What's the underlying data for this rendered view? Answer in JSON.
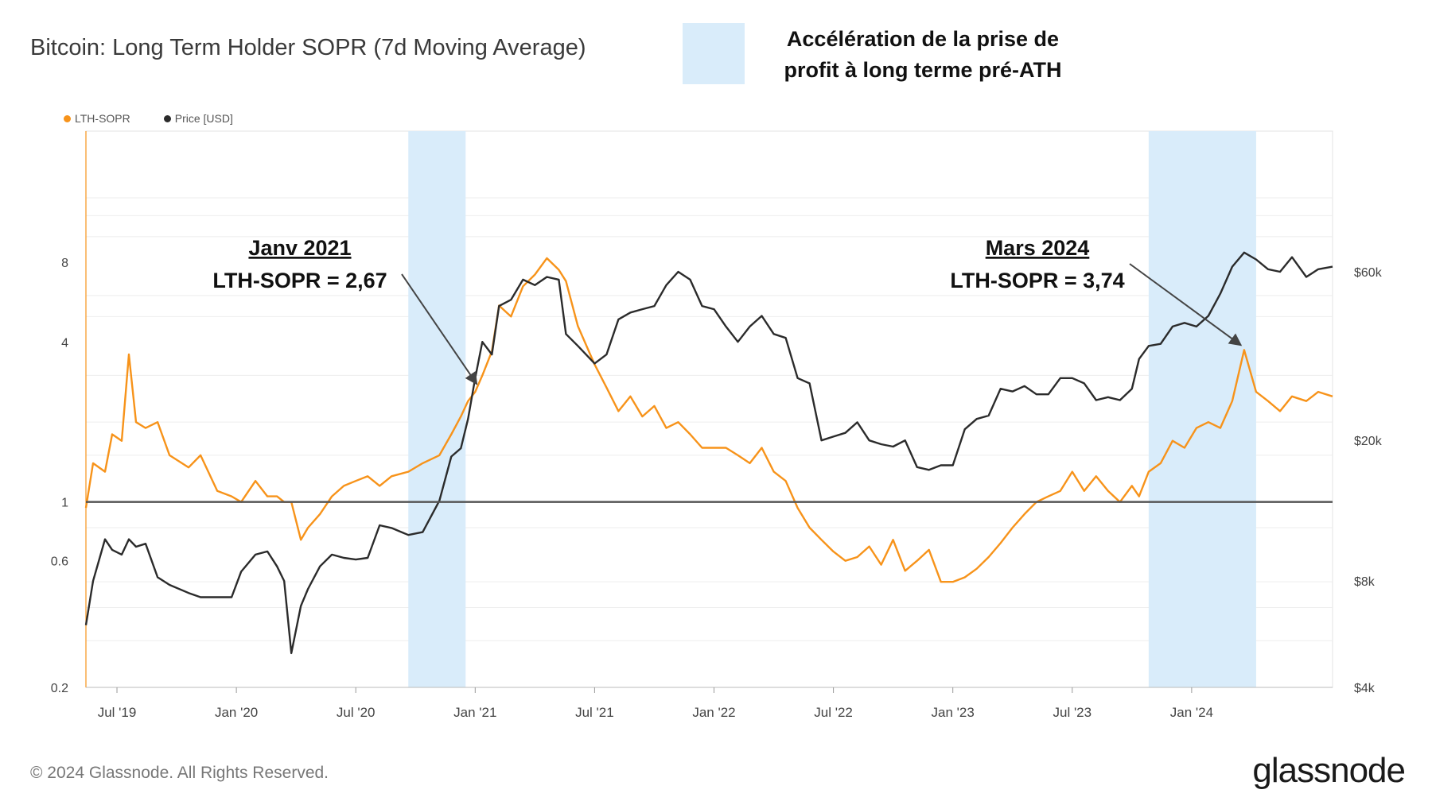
{
  "title": "Bitcoin: Long Term Holder SOPR (7d Moving Average)",
  "highlight_legend": {
    "line1": "Accélération de la prise de",
    "line2": "profit à long terme pré-ATH",
    "color": "#d9ecfa"
  },
  "series_legend": [
    {
      "label": "LTH-SOPR",
      "color": "#f7931a"
    },
    {
      "label": "Price [USD]",
      "color": "#2b2b2b"
    }
  ],
  "annotations": [
    {
      "title": "Janv 2021",
      "text": "LTH-SOPR = 2,67",
      "x_value": 2021.02,
      "y_value": 2.67
    },
    {
      "title": "Mars 2024",
      "text": "LTH-SOPR = 3,74",
      "x_value": 2024.22,
      "y_value": 3.74
    }
  ],
  "footer": "© 2024 Glassnode. All Rights Reserved.",
  "brand": "glassnode",
  "chart_data": {
    "type": "line",
    "title": "Bitcoin: Long Term Holder SOPR (7d Moving Average)",
    "x_range": [
      2019.37,
      2024.59
    ],
    "x_ticks": [
      {
        "label": "Jul '19",
        "value": 2019.5
      },
      {
        "label": "Jan '20",
        "value": 2020.0
      },
      {
        "label": "Jul '20",
        "value": 2020.5
      },
      {
        "label": "Jan '21",
        "value": 2021.0
      },
      {
        "label": "Jul '21",
        "value": 2021.5
      },
      {
        "label": "Jan '22",
        "value": 2022.0
      },
      {
        "label": "Jul '22",
        "value": 2022.5
      },
      {
        "label": "Jan '23",
        "value": 2023.0
      },
      {
        "label": "Jul '23",
        "value": 2023.5
      },
      {
        "label": "Jan '24",
        "value": 2024.0
      }
    ],
    "y_left": {
      "scale": "log",
      "range": [
        0.2,
        25
      ],
      "ticks": [
        {
          "label": "0.2",
          "value": 0.2
        },
        {
          "label": "0.6",
          "value": 0.6
        },
        {
          "label": "1",
          "value": 1
        },
        {
          "label": "4",
          "value": 4
        },
        {
          "label": "8",
          "value": 8
        }
      ]
    },
    "y_right": {
      "scale": "log",
      "range": [
        4000,
        150000
      ],
      "ticks": [
        {
          "label": "$4k",
          "value": 4000
        },
        {
          "label": "$8k",
          "value": 8000
        },
        {
          "label": "$20k",
          "value": 20000
        },
        {
          "label": "$60k",
          "value": 60000
        }
      ]
    },
    "reference_line": {
      "axis": "left",
      "value": 1,
      "color": "#555555"
    },
    "highlight_ranges": [
      {
        "x0": 2020.72,
        "x1": 2020.96
      },
      {
        "x0": 2023.82,
        "x1": 2024.27
      }
    ],
    "series": [
      {
        "name": "LTH-SOPR",
        "axis": "left",
        "color": "#f7931a",
        "x": [
          2019.37,
          2019.4,
          2019.45,
          2019.48,
          2019.52,
          2019.55,
          2019.58,
          2019.62,
          2019.67,
          2019.72,
          2019.8,
          2019.85,
          2019.92,
          2019.98,
          2020.02,
          2020.08,
          2020.13,
          2020.17,
          2020.2,
          2020.23,
          2020.27,
          2020.3,
          2020.35,
          2020.4,
          2020.45,
          2020.5,
          2020.55,
          2020.6,
          2020.65,
          2020.72,
          2020.78,
          2020.85,
          2020.9,
          2020.94,
          2020.97,
          2021.0,
          2021.03,
          2021.07,
          2021.1,
          2021.15,
          2021.2,
          2021.25,
          2021.3,
          2021.35,
          2021.38,
          2021.43,
          2021.5,
          2021.55,
          2021.6,
          2021.65,
          2021.7,
          2021.75,
          2021.8,
          2021.85,
          2021.9,
          2021.95,
          2022.0,
          2022.05,
          2022.1,
          2022.15,
          2022.2,
          2022.25,
          2022.3,
          2022.35,
          2022.4,
          2022.45,
          2022.5,
          2022.55,
          2022.6,
          2022.65,
          2022.7,
          2022.75,
          2022.8,
          2022.85,
          2022.9,
          2022.95,
          2023.0,
          2023.05,
          2023.1,
          2023.15,
          2023.2,
          2023.25,
          2023.3,
          2023.35,
          2023.4,
          2023.45,
          2023.5,
          2023.55,
          2023.6,
          2023.65,
          2023.7,
          2023.75,
          2023.78,
          2023.82,
          2023.87,
          2023.92,
          2023.97,
          2024.02,
          2024.07,
          2024.12,
          2024.17,
          2024.22,
          2024.27,
          2024.32,
          2024.37,
          2024.42,
          2024.48,
          2024.53,
          2024.59
        ],
        "values": [
          0.95,
          1.4,
          1.3,
          1.8,
          1.7,
          3.6,
          2.0,
          1.9,
          2.0,
          1.5,
          1.35,
          1.5,
          1.1,
          1.05,
          1.0,
          1.2,
          1.05,
          1.05,
          1.0,
          1.0,
          0.72,
          0.8,
          0.9,
          1.05,
          1.15,
          1.2,
          1.25,
          1.15,
          1.25,
          1.3,
          1.4,
          1.5,
          1.8,
          2.1,
          2.4,
          2.6,
          3.0,
          3.7,
          5.5,
          5.0,
          6.5,
          7.2,
          8.3,
          7.5,
          6.8,
          4.6,
          3.3,
          2.7,
          2.2,
          2.5,
          2.1,
          2.3,
          1.9,
          2.0,
          1.8,
          1.6,
          1.6,
          1.6,
          1.5,
          1.4,
          1.6,
          1.3,
          1.2,
          0.95,
          0.8,
          0.72,
          0.65,
          0.6,
          0.62,
          0.68,
          0.58,
          0.72,
          0.55,
          0.6,
          0.66,
          0.5,
          0.5,
          0.52,
          0.56,
          0.62,
          0.7,
          0.8,
          0.9,
          1.0,
          1.05,
          1.1,
          1.3,
          1.1,
          1.25,
          1.1,
          1.0,
          1.15,
          1.05,
          1.3,
          1.4,
          1.7,
          1.6,
          1.9,
          2.0,
          1.9,
          2.4,
          3.74,
          2.6,
          2.4,
          2.2,
          2.5,
          2.4,
          2.6,
          2.5
        ]
      },
      {
        "name": "Price [USD]",
        "axis": "right",
        "color": "#2b2b2b",
        "x": [
          2019.37,
          2019.4,
          2019.45,
          2019.48,
          2019.52,
          2019.55,
          2019.58,
          2019.62,
          2019.67,
          2019.72,
          2019.8,
          2019.85,
          2019.92,
          2019.98,
          2020.02,
          2020.08,
          2020.13,
          2020.17,
          2020.2,
          2020.23,
          2020.27,
          2020.3,
          2020.35,
          2020.4,
          2020.45,
          2020.5,
          2020.55,
          2020.6,
          2020.65,
          2020.72,
          2020.78,
          2020.85,
          2020.9,
          2020.94,
          2020.97,
          2021.0,
          2021.03,
          2021.07,
          2021.1,
          2021.15,
          2021.2,
          2021.25,
          2021.3,
          2021.35,
          2021.38,
          2021.43,
          2021.5,
          2021.55,
          2021.6,
          2021.65,
          2021.7,
          2021.75,
          2021.8,
          2021.85,
          2021.9,
          2021.95,
          2022.0,
          2022.05,
          2022.1,
          2022.15,
          2022.2,
          2022.25,
          2022.3,
          2022.35,
          2022.4,
          2022.45,
          2022.5,
          2022.55,
          2022.6,
          2022.65,
          2022.7,
          2022.75,
          2022.8,
          2022.85,
          2022.9,
          2022.95,
          2023.0,
          2023.05,
          2023.1,
          2023.15,
          2023.2,
          2023.25,
          2023.3,
          2023.35,
          2023.4,
          2023.45,
          2023.5,
          2023.55,
          2023.6,
          2023.65,
          2023.7,
          2023.75,
          2023.78,
          2023.82,
          2023.87,
          2023.92,
          2023.97,
          2024.02,
          2024.07,
          2024.12,
          2024.17,
          2024.22,
          2024.27,
          2024.32,
          2024.37,
          2024.42,
          2024.48,
          2024.53,
          2024.59
        ],
        "values": [
          6000,
          8000,
          10500,
          9800,
          9500,
          10500,
          10000,
          10200,
          8200,
          7800,
          7400,
          7200,
          7200,
          7200,
          8500,
          9500,
          9700,
          8800,
          8000,
          5000,
          6800,
          7600,
          8800,
          9500,
          9300,
          9200,
          9300,
          11500,
          11300,
          10800,
          11000,
          13500,
          18000,
          19000,
          23000,
          30000,
          38000,
          35000,
          48000,
          50000,
          57000,
          55000,
          58000,
          57000,
          40000,
          37000,
          33000,
          35000,
          44000,
          46000,
          47000,
          48000,
          55000,
          60000,
          57000,
          48000,
          47000,
          42000,
          38000,
          42000,
          45000,
          40000,
          39000,
          30000,
          29000,
          20000,
          20500,
          21000,
          22500,
          20000,
          19500,
          19200,
          20000,
          16800,
          16500,
          17000,
          17000,
          21500,
          23000,
          23500,
          28000,
          27500,
          28500,
          27000,
          27000,
          30000,
          30000,
          29000,
          26000,
          26500,
          26000,
          28000,
          34000,
          37000,
          37500,
          42000,
          43000,
          42000,
          45000,
          52000,
          62000,
          68000,
          65000,
          61000,
          60000,
          66000,
          58000,
          61000,
          62000
        ]
      }
    ]
  }
}
